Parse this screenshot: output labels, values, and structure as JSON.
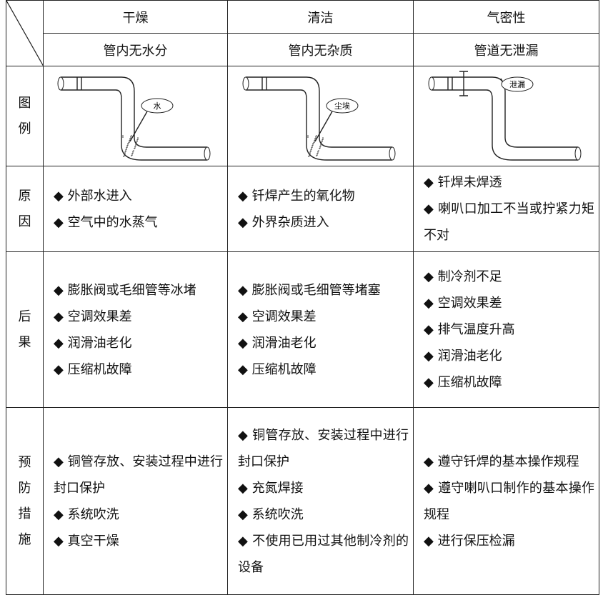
{
  "table": {
    "header": [
      "干燥",
      "清洁",
      "气密性"
    ],
    "subheader": [
      "管内无水分",
      "管内无杂质",
      "管道无泄漏"
    ],
    "figure": {
      "label": "图例",
      "callouts": [
        "水",
        "尘埃",
        "泄漏"
      ]
    },
    "rows": [
      {
        "label": "原因",
        "cells": [
          [
            "◆ 外部水进入",
            "◆ 空气中的水蒸气"
          ],
          [
            "◆ 钎焊产生的氧化物",
            "◆ 外界杂质进入"
          ],
          [
            "◆ 钎焊未焊透",
            "◆ 喇叭口加工不当或拧紧力矩不对"
          ]
        ]
      },
      {
        "label": "后果",
        "cells": [
          [
            "◆ 膨胀阀或毛细管等冰堵",
            "◆ 空调效果差",
            "◆ 润滑油老化",
            "◆ 压缩机故障"
          ],
          [
            "◆ 膨胀阀或毛细管等堵塞",
            "◆ 空调效果差",
            "◆ 润滑油老化",
            "◆ 压缩机故障"
          ],
          [
            "◆ 制冷剂不足",
            "◆ 空调效果差",
            "◆ 排气温度升高",
            "◆ 润滑油老化",
            "◆ 压缩机故障"
          ]
        ]
      },
      {
        "label": "预防措施",
        "cells": [
          [
            "◆ 铜管存放、安装过程中进行封口保护",
            "◆ 系统吹洗",
            "◆ 真空干燥"
          ],
          [
            "◆ 铜管存放、安装过程中进行封口保护",
            "◆ 充氮焊接",
            "◆ 系统吹洗",
            "◆ 不使用已用过其他制冷剂的设备"
          ],
          [
            "◆ 遵守钎焊的基本操作规程",
            "◆ 遵守喇叭口制作的基本操作规程",
            "◆ 进行保压检漏"
          ]
        ]
      }
    ]
  }
}
